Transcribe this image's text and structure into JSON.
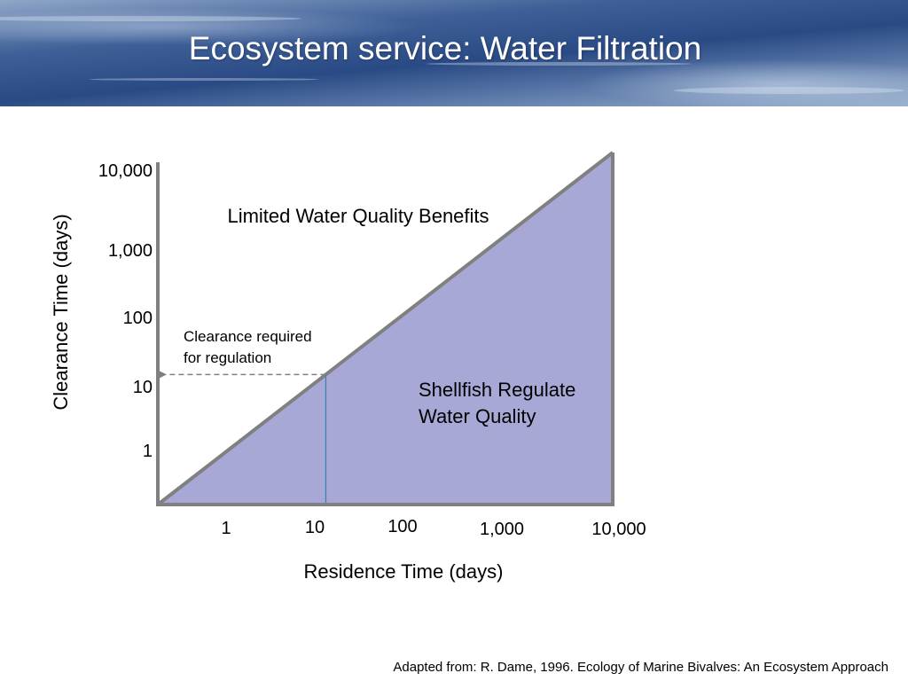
{
  "slide": {
    "title": "Ecosystem service: Water Filtration",
    "caption": "Adapted from: R. Dame, 1996. Ecology of Marine Bivalves: An Ecosystem Approach"
  },
  "chart_data": {
    "type": "area",
    "xlabel": "Residence Time (days)",
    "ylabel": "Clearance Time (days)",
    "x_scale": "log",
    "y_scale": "log",
    "x_ticks": [
      "1",
      "10",
      "100",
      "1,000",
      "10,000"
    ],
    "y_ticks": [
      "1",
      "10",
      "100",
      "1,000",
      "10,000"
    ],
    "boundary_line": {
      "x": [
        1,
        10000
      ],
      "y": [
        1,
        10000
      ]
    },
    "regions": [
      {
        "label": "Limited Water Quality Benefits",
        "position": "above line"
      },
      {
        "label_lines": [
          "Shellfish Regulate",
          "Water Quality"
        ],
        "position": "below line",
        "fill": "#a8a8d6"
      }
    ],
    "annotation": {
      "label_lines": [
        "Clearance required",
        "for regulation"
      ],
      "x": 30,
      "y": 30
    },
    "colors": {
      "fill": "#a8a8d6",
      "line": "#808080",
      "marker_line": "#3a7fb0",
      "axis": "#808080"
    },
    "grid": false,
    "legend": "none"
  }
}
